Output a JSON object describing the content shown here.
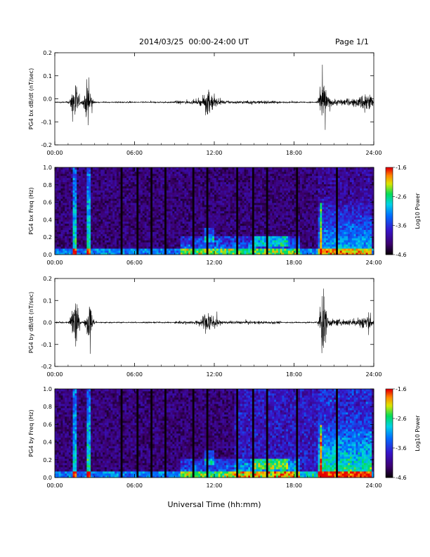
{
  "header": {
    "title": "2014/03/25  00:00-24:00 UT",
    "page": "Page 1/1"
  },
  "x_axis_title": "Universal Time (hh:mm)",
  "chart_data": [
    {
      "type": "line",
      "ylabel": "PG4 bx dB/dt (nT/sec)",
      "xlim": [
        0,
        24
      ],
      "ylim": [
        -0.2,
        0.2
      ],
      "xticks": [
        "00:00",
        "06:00",
        "12:00",
        "18:00",
        "24:00"
      ],
      "yticks": [
        "-0.2",
        "-0.1",
        "0.0",
        "0.1",
        "0.2"
      ],
      "baseline": -0.015,
      "activity": [
        {
          "t": 1.5,
          "amp": 0.17
        },
        {
          "t": 2.5,
          "amp": 0.16
        },
        {
          "t": 11.6,
          "amp": 0.07
        },
        {
          "t": 20.2,
          "amp": 0.15
        },
        {
          "t": 23.5,
          "amp": 0.06
        }
      ]
    },
    {
      "type": "heatmap",
      "ylabel": "PG4 bx Freq (Hz)",
      "xlim": [
        0,
        24
      ],
      "ylim": [
        0,
        1.0
      ],
      "xticks": [
        "00:00",
        "06:00",
        "12:00",
        "18:00",
        "24:00"
      ],
      "yticks": [
        "0.0",
        "0.2",
        "0.4",
        "0.6",
        "0.8",
        "1.0"
      ],
      "colorbar": {
        "label": "Log10 Power",
        "ticks": [
          "-1.6",
          "-2.6",
          "-3.6",
          "-4.6"
        ],
        "range": [
          -4.6,
          -1.6
        ]
      }
    },
    {
      "type": "line",
      "ylabel": "PG4 by dB/dt (nT/sec)",
      "xlim": [
        0,
        24
      ],
      "ylim": [
        -0.2,
        0.2
      ],
      "xticks": [
        "00:00",
        "06:00",
        "12:00",
        "18:00",
        "24:00"
      ],
      "yticks": [
        "-0.2",
        "-0.1",
        "0.0",
        "0.1",
        "0.2"
      ],
      "baseline": 0.0,
      "activity": [
        {
          "t": 1.5,
          "amp": 0.2
        },
        {
          "t": 2.6,
          "amp": 0.14
        },
        {
          "t": 11.6,
          "amp": 0.09
        },
        {
          "t": 20.2,
          "amp": 0.2
        },
        {
          "t": 23.5,
          "amp": 0.05
        }
      ]
    },
    {
      "type": "heatmap",
      "ylabel": "PG4 by Freq (Hz)",
      "xlim": [
        0,
        24
      ],
      "ylim": [
        0,
        1.0
      ],
      "xticks": [
        "00:00",
        "06:00",
        "12:00",
        "18:00",
        "24:00"
      ],
      "yticks": [
        "0.0",
        "0.2",
        "0.4",
        "0.6",
        "0.8",
        "1.0"
      ],
      "colorbar": {
        "label": "Log10 Power",
        "ticks": [
          "-1.6",
          "-2.6",
          "-3.6",
          "-4.6"
        ],
        "range": [
          -4.6,
          -1.6
        ]
      }
    }
  ]
}
